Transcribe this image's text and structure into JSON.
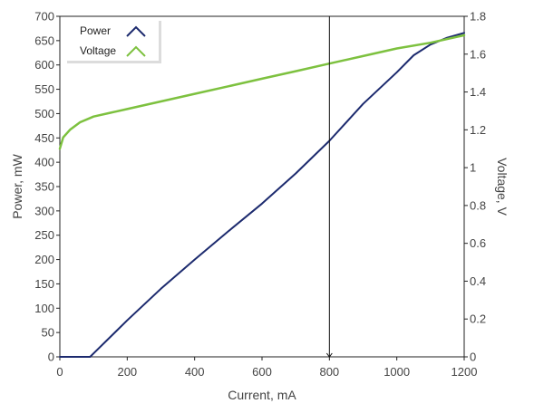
{
  "chart_data": {
    "type": "line",
    "xlabel": "Current, mA",
    "ylabel_left": "Power, mW",
    "ylabel_right": "Voltage, V",
    "xlim": [
      0,
      1200
    ],
    "ylim_left": [
      0,
      700
    ],
    "ylim_right": [
      0,
      1.8
    ],
    "x_ticks": [
      "0",
      "200",
      "400",
      "600",
      "800",
      "1000",
      "1200"
    ],
    "y_left_ticks": [
      "0",
      "50",
      "100",
      "150",
      "200",
      "250",
      "300",
      "350",
      "400",
      "450",
      "500",
      "550",
      "600",
      "650",
      "700"
    ],
    "y_right_ticks": [
      "0",
      "0.2",
      "0.4",
      "0.6",
      "0.8",
      "1",
      "1.2",
      "1.4",
      "1.6",
      "1.8"
    ],
    "grid": false,
    "legend_position": "top-left",
    "cursor_x": 800,
    "series": [
      {
        "name": "Power",
        "axis": "left",
        "color": "#1c2a6e",
        "x": [
          0,
          90,
          100,
          200,
          300,
          400,
          500,
          600,
          700,
          800,
          900,
          1000,
          1050,
          1100,
          1150,
          1200
        ],
        "y": [
          0,
          0,
          7,
          75,
          140,
          200,
          258,
          315,
          377,
          444,
          520,
          585,
          620,
          642,
          656,
          666
        ]
      },
      {
        "name": "Voltage",
        "axis": "right",
        "color": "#7dc13f",
        "x": [
          0,
          10,
          30,
          60,
          100,
          150,
          200,
          300,
          400,
          500,
          600,
          700,
          800,
          900,
          1000,
          1100,
          1200
        ],
        "y": [
          1.1,
          1.16,
          1.2,
          1.24,
          1.27,
          1.29,
          1.31,
          1.35,
          1.39,
          1.43,
          1.47,
          1.51,
          1.55,
          1.59,
          1.63,
          1.66,
          1.7
        ]
      }
    ]
  }
}
